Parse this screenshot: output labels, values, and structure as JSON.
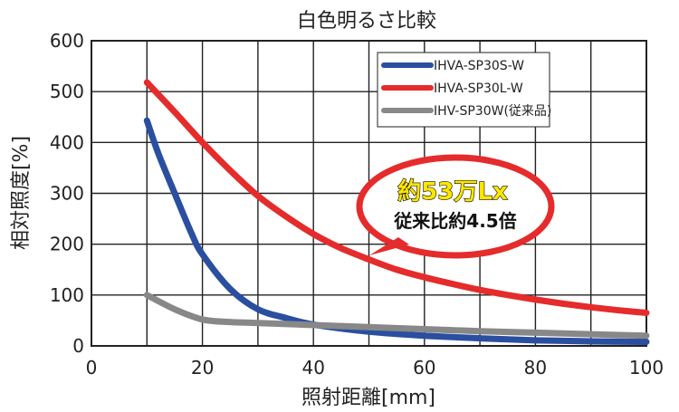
{
  "chart_data": {
    "type": "line",
    "title": "白色明るさ比較",
    "xlabel": "照射距離[mm]",
    "ylabel": "相対照度[%]",
    "xlim": [
      0,
      100
    ],
    "ylim": [
      0,
      600
    ],
    "xticks": [
      0,
      20,
      40,
      60,
      80,
      100
    ],
    "yticks": [
      0,
      100,
      200,
      300,
      400,
      500,
      600
    ],
    "grid": true,
    "legend_position": "top-right",
    "series": [
      {
        "name": "IHVA-SP30S-W",
        "color": "#2a4fa0",
        "x": [
          10,
          12,
          15,
          18,
          20,
          25,
          30,
          35,
          40,
          50,
          60,
          70,
          80,
          90,
          100
        ],
        "y": [
          443,
          380,
          300,
          222,
          180,
          112,
          72,
          55,
          42,
          28,
          20,
          15,
          11,
          9,
          8
        ]
      },
      {
        "name": "IHVA-SP30L-W",
        "color": "#e52b2b",
        "x": [
          10,
          15,
          20,
          25,
          30,
          35,
          40,
          45,
          50,
          55,
          60,
          65,
          70,
          75,
          80,
          85,
          90,
          95,
          100
        ],
        "y": [
          518,
          460,
          400,
          345,
          295,
          255,
          220,
          192,
          170,
          150,
          135,
          122,
          110,
          100,
          91,
          83,
          76,
          70,
          65
        ]
      },
      {
        "name": "IHV-SP30W(従来品)",
        "color": "#888888",
        "x": [
          10,
          15,
          20,
          25,
          30,
          40,
          50,
          60,
          70,
          80,
          90,
          100
        ],
        "y": [
          100,
          72,
          52,
          47,
          45,
          41,
          37,
          33,
          29,
          26,
          23,
          20
        ]
      }
    ],
    "annotations": [
      {
        "text": "約53万Lx"
      },
      {
        "text": "従来比約4.5倍"
      }
    ]
  }
}
